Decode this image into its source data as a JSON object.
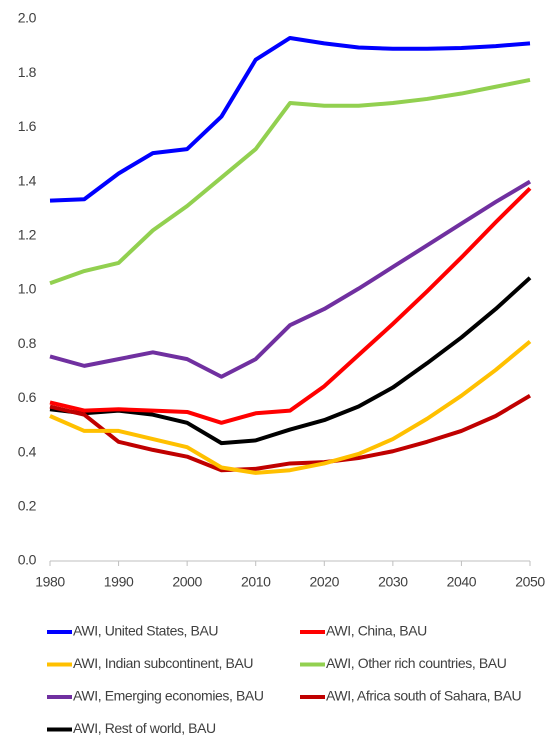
{
  "chart_data": {
    "type": "line",
    "x": [
      1980,
      1985,
      1990,
      1995,
      2000,
      2005,
      2010,
      2015,
      2020,
      2025,
      2030,
      2035,
      2040,
      2045,
      2050
    ],
    "xlim": [
      1980,
      2050
    ],
    "xticks": [
      1980,
      1990,
      2000,
      2010,
      2020,
      2030,
      2040,
      2050
    ],
    "ylim": [
      0,
      2
    ],
    "yticks": [
      {
        "value": 0,
        "label": "0.0"
      },
      {
        "value": 0.2,
        "label": "0.2"
      },
      {
        "value": 0.4,
        "label": "0.4"
      },
      {
        "value": 0.6,
        "label": "0.6"
      },
      {
        "value": 0.8,
        "label": "0.8"
      },
      {
        "value": 1,
        "label": "1.0"
      },
      {
        "value": 1.2,
        "label": "1.2"
      },
      {
        "value": 1.4,
        "label": "1.4"
      },
      {
        "value": 1.6,
        "label": "1.6"
      },
      {
        "value": 1.8,
        "label": "1.8"
      },
      {
        "value": 2,
        "label": "2.0"
      }
    ],
    "grid": false,
    "series": [
      {
        "name": "AWI, United States, BAU",
        "color": "#0000ff",
        "values": [
          1.33,
          1.335,
          1.43,
          1.505,
          1.52,
          1.64,
          1.85,
          1.93,
          1.91,
          1.895,
          1.89,
          1.89,
          1.893,
          1.9,
          1.91
        ]
      },
      {
        "name": "AWI, China, BAU",
        "color": "#ff0000",
        "values": [
          0.585,
          0.555,
          0.56,
          0.555,
          0.55,
          0.51,
          0.545,
          0.555,
          0.645,
          0.76,
          0.875,
          0.995,
          1.12,
          1.25,
          1.375
        ]
      },
      {
        "name": "AWI, Indian subcontinent, BAU",
        "color": "#ffc000",
        "values": [
          0.535,
          0.48,
          0.48,
          0.45,
          0.42,
          0.345,
          0.325,
          0.335,
          0.36,
          0.395,
          0.45,
          0.525,
          0.61,
          0.705,
          0.81
        ]
      },
      {
        "name": "AWI, Other rich countries, BAU",
        "color": "#92d050",
        "values": [
          1.025,
          1.07,
          1.1,
          1.22,
          1.31,
          1.415,
          1.52,
          1.69,
          1.68,
          1.68,
          1.69,
          1.705,
          1.725,
          1.75,
          1.775
        ]
      },
      {
        "name": "AWI, Emerging economies, BAU",
        "color": "#7030a0",
        "values": [
          0.755,
          0.72,
          0.745,
          0.77,
          0.745,
          0.68,
          0.745,
          0.87,
          0.93,
          1.005,
          1.085,
          1.165,
          1.245,
          1.325,
          1.4
        ]
      },
      {
        "name": "AWI, Africa south of Sahara, BAU",
        "color": "#c00000",
        "values": [
          0.57,
          0.54,
          0.44,
          0.41,
          0.385,
          0.335,
          0.34,
          0.36,
          0.365,
          0.38,
          0.405,
          0.44,
          0.48,
          0.535,
          0.61
        ]
      },
      {
        "name": "AWI, Rest of world, BAU",
        "color": "#000000",
        "values": [
          0.56,
          0.545,
          0.555,
          0.54,
          0.51,
          0.435,
          0.445,
          0.485,
          0.52,
          0.57,
          0.64,
          0.73,
          0.825,
          0.93,
          1.045
        ]
      }
    ]
  }
}
